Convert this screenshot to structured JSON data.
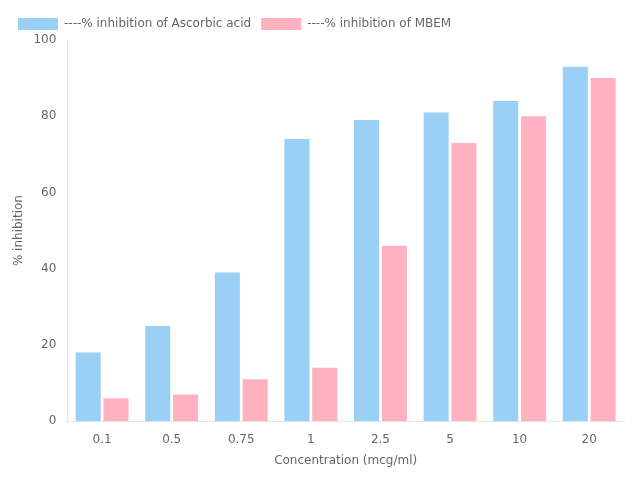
{
  "chart_data": {
    "type": "bar",
    "categories": [
      "0.1",
      "0.5",
      "0.75",
      "1",
      "2.5",
      "5",
      "10",
      "20"
    ],
    "series": [
      {
        "name": "----% inhibition of Ascorbic acid",
        "values": [
          18,
          25,
          39,
          74,
          79,
          81,
          84,
          93
        ]
      },
      {
        "name": "----% inhibition of MBEM",
        "values": [
          6,
          7,
          11,
          14,
          46,
          73,
          80,
          90
        ]
      }
    ],
    "xlabel": "Concentration (mcg/ml)",
    "ylabel": "% inhibition",
    "ylim": [
      0,
      100
    ],
    "yticks": [
      0,
      20,
      40,
      60,
      80,
      100
    ],
    "grid": false,
    "legend": "upper left"
  }
}
